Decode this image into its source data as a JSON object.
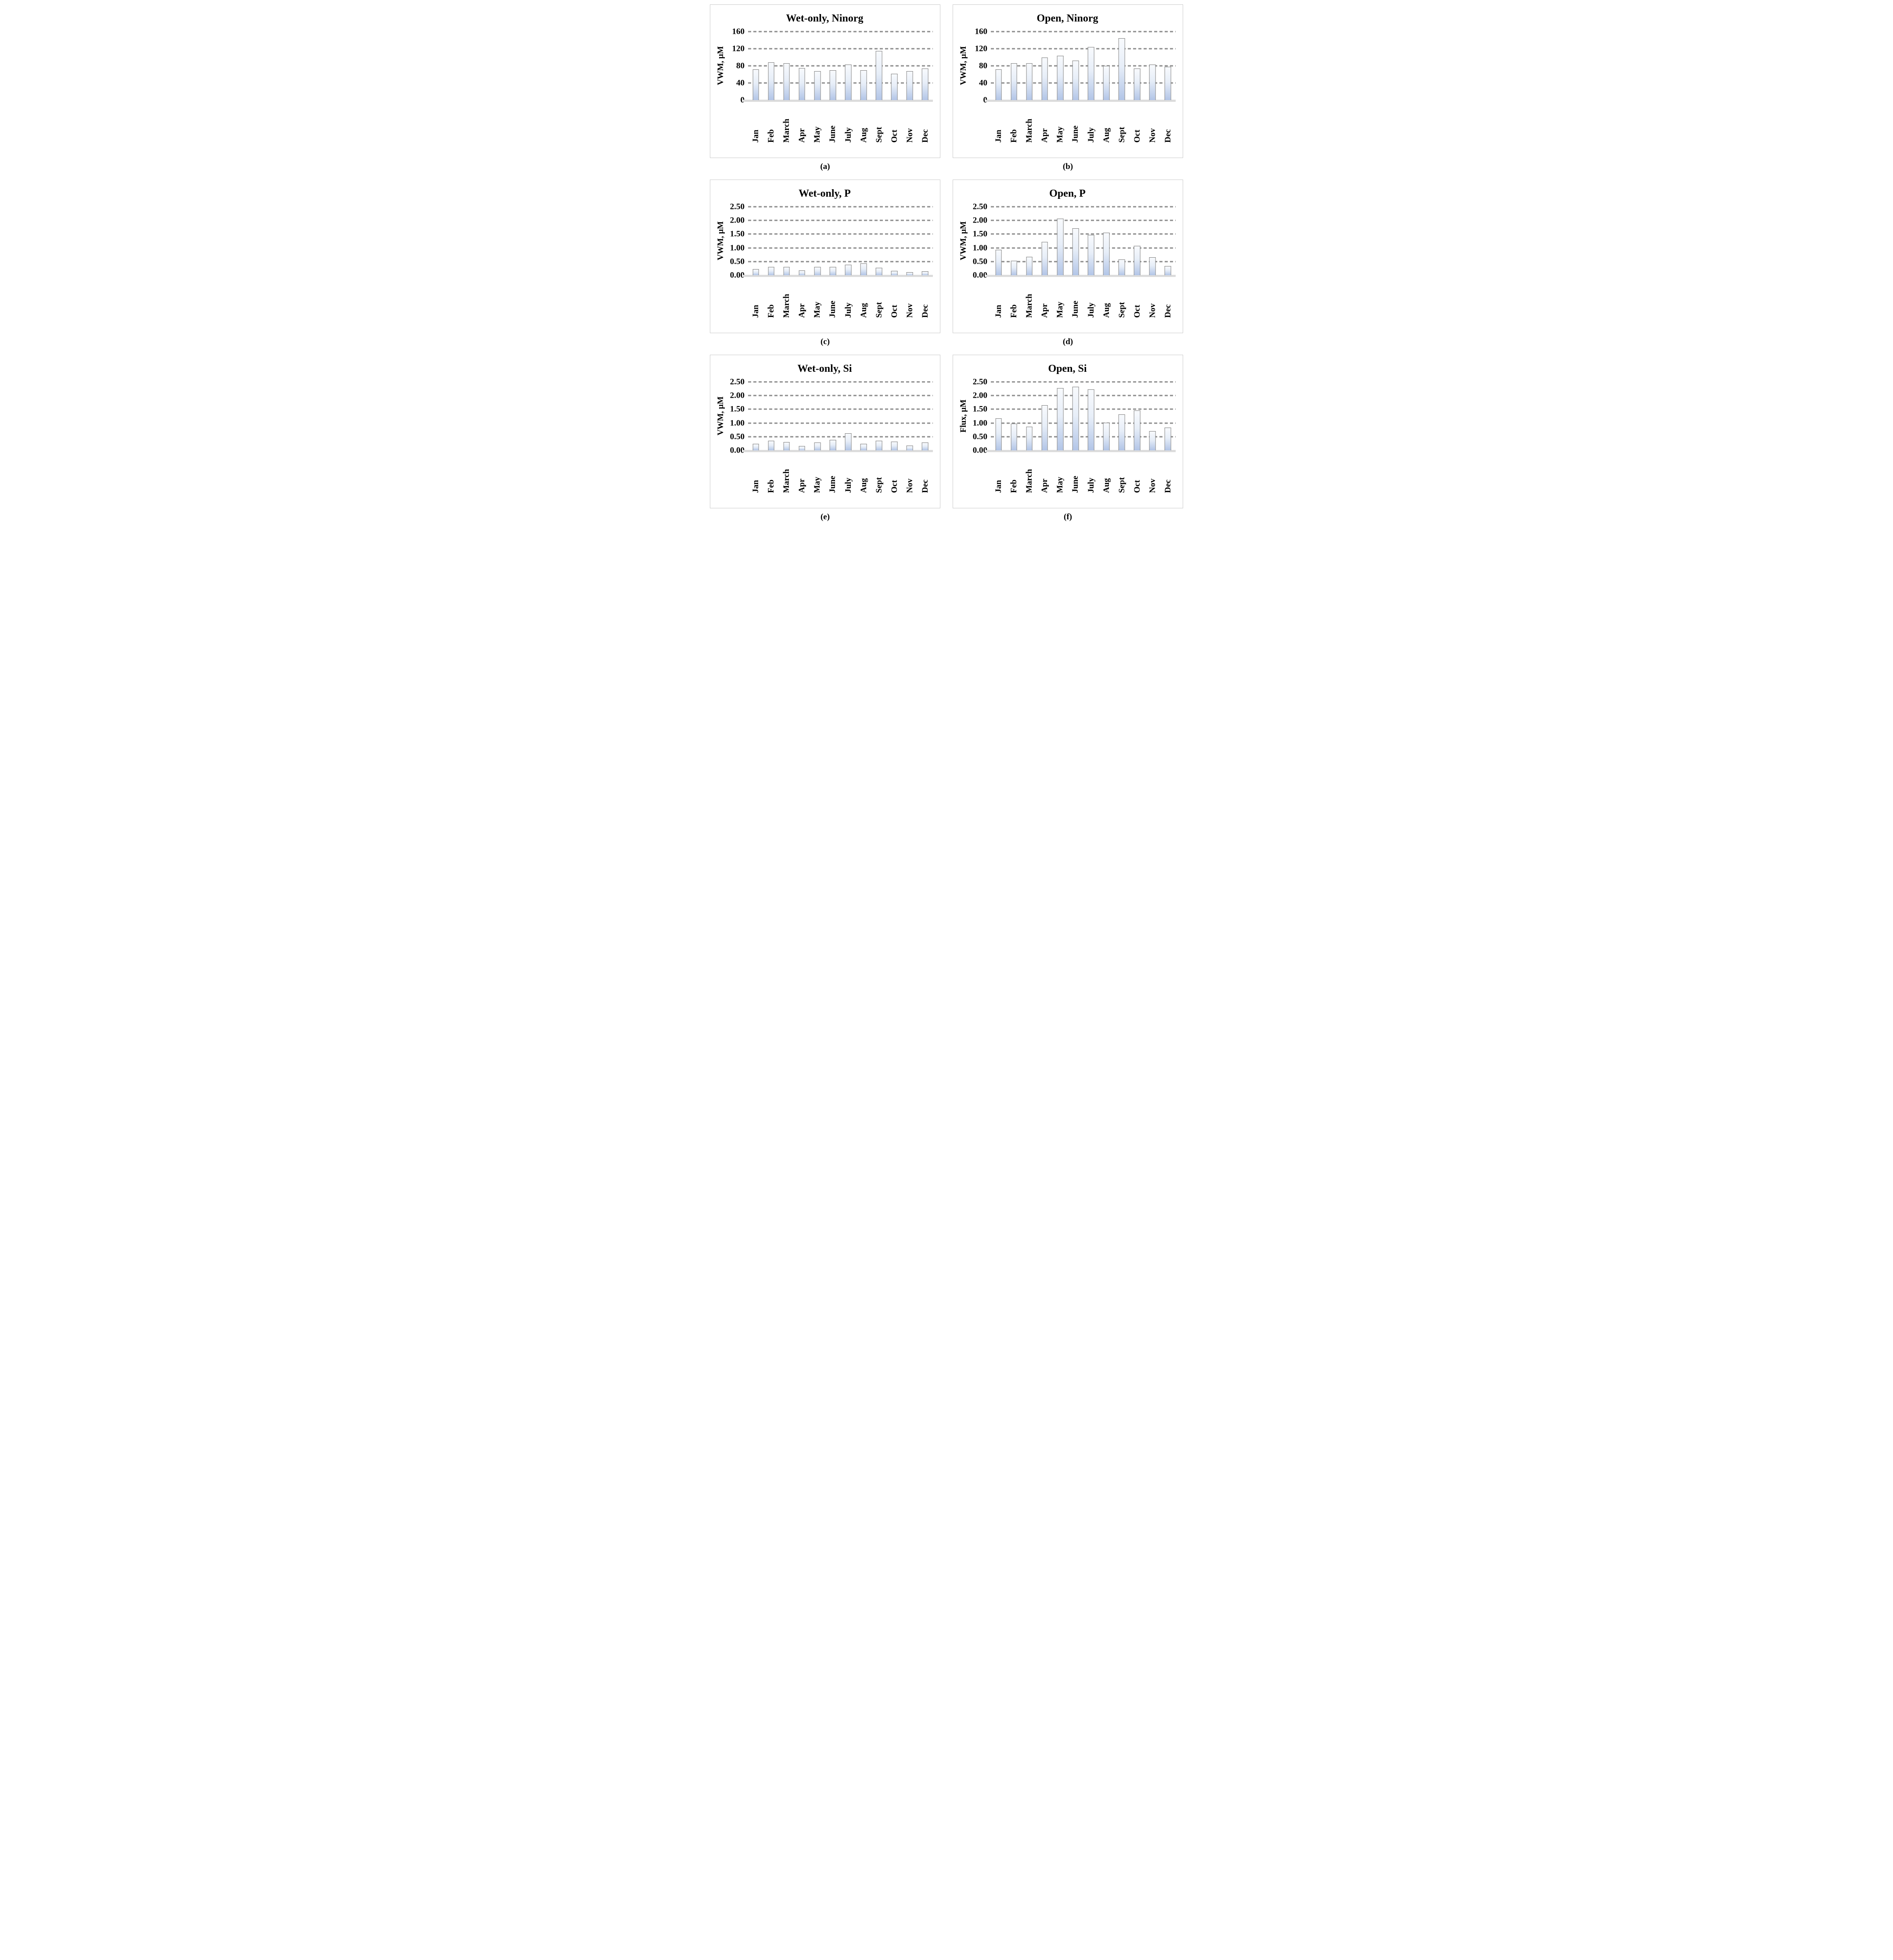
{
  "figure": {
    "layout": "2x3-grid-of-bar-charts",
    "months": [
      "Jan",
      "Feb",
      "March",
      "Apr",
      "May",
      "June",
      "July",
      "Aug",
      "Sept",
      "Oct",
      "Nov",
      "Dec"
    ]
  },
  "styles": {
    "gridline_color": "#8c8c8c",
    "baseline_color": "#dcdcdc",
    "panel_border_color": "#cccccc",
    "bar_gradient_top": "#f8fafd",
    "bar_gradient_mid": "#e7eef8",
    "bar_gradient_bottom": "#b2c5e7",
    "bar_border_color": "#7f7f7f",
    "text_color": "#000000"
  },
  "chart_data": [
    {
      "id": "a",
      "type": "bar",
      "title": "Wet-only, Ninorg",
      "ylabel": "VWM, µM",
      "caption": "(a)",
      "legend_position": "none",
      "grid": "horizontal-dashed",
      "categories": [
        "Jan",
        "Feb",
        "March",
        "Apr",
        "May",
        "June",
        "July",
        "Aug",
        "Sept",
        "Oct",
        "Nov",
        "Dec"
      ],
      "values": [
        72,
        88,
        86,
        75,
        68,
        70,
        83,
        70,
        115,
        62,
        68,
        74
      ],
      "ylim": [
        0,
        160
      ],
      "ytick_values": [
        160,
        120,
        80,
        40,
        0
      ],
      "ytick_labels": [
        "160",
        "120",
        "80",
        "40",
        "0"
      ]
    },
    {
      "id": "b",
      "type": "bar",
      "title": "Open, Ninorg",
      "ylabel": "VWM, µM",
      "caption": "(b)",
      "legend_position": "none",
      "grid": "horizontal-dashed",
      "categories": [
        "Jan",
        "Feb",
        "March",
        "Apr",
        "May",
        "June",
        "July",
        "Aug",
        "Sept",
        "Oct",
        "Nov",
        "Dec"
      ],
      "values": [
        72,
        86,
        86,
        100,
        104,
        92,
        124,
        80,
        145,
        74,
        83,
        78
      ],
      "ylim": [
        0,
        160
      ],
      "ytick_values": [
        160,
        120,
        80,
        40,
        0
      ],
      "ytick_labels": [
        "160",
        "120",
        "80",
        "40",
        "0"
      ]
    },
    {
      "id": "c",
      "type": "bar",
      "title": "Wet-only, P",
      "ylabel": "VWM, µM",
      "caption": "(c)",
      "legend_position": "none",
      "grid": "horizontal-dashed",
      "categories": [
        "Jan",
        "Feb",
        "March",
        "Apr",
        "May",
        "June",
        "July",
        "Aug",
        "Sept",
        "Oct",
        "Nov",
        "Dec"
      ],
      "values": [
        0.22,
        0.3,
        0.31,
        0.18,
        0.31,
        0.3,
        0.39,
        0.43,
        0.28,
        0.16,
        0.12,
        0.15
      ],
      "ylim": [
        0,
        2.5
      ],
      "ytick_values": [
        2.5,
        2.0,
        1.5,
        1.0,
        0.5,
        0
      ],
      "ytick_labels": [
        "2.50",
        "2.00",
        "1.50",
        "1.00",
        "0.50",
        "0.00"
      ]
    },
    {
      "id": "d",
      "type": "bar",
      "title": "Open, P",
      "ylabel": "VWM, µM",
      "caption": "(d)",
      "legend_position": "none",
      "grid": "horizontal-dashed",
      "categories": [
        "Jan",
        "Feb",
        "March",
        "Apr",
        "May",
        "June",
        "July",
        "Aug",
        "Sept",
        "Oct",
        "Nov",
        "Dec"
      ],
      "values": [
        0.93,
        0.53,
        0.68,
        1.22,
        2.07,
        1.72,
        1.48,
        1.56,
        0.58,
        1.08,
        0.65,
        0.33
      ],
      "ylim": [
        0,
        2.5
      ],
      "ytick_values": [
        2.5,
        2.0,
        1.5,
        1.0,
        0.5,
        0
      ],
      "ytick_labels": [
        "2.50",
        "2.00",
        "1.50",
        "1.00",
        "0.50",
        "0.00"
      ]
    },
    {
      "id": "e",
      "type": "bar",
      "title": "Wet-only, Si",
      "ylabel": "VWM, µM",
      "caption": "(e)",
      "legend_position": "none",
      "grid": "horizontal-dashed",
      "categories": [
        "Jan",
        "Feb",
        "March",
        "Apr",
        "May",
        "June",
        "July",
        "Aug",
        "Sept",
        "Oct",
        "Nov",
        "Dec"
      ],
      "values": [
        0.24,
        0.36,
        0.31,
        0.16,
        0.29,
        0.38,
        0.62,
        0.24,
        0.35,
        0.32,
        0.17,
        0.29
      ],
      "ylim": [
        0,
        2.5
      ],
      "ytick_values": [
        2.5,
        2.0,
        1.5,
        1.0,
        0.5,
        0
      ],
      "ytick_labels": [
        "2.50",
        "2.00",
        "1.50",
        "1.00",
        "0.50",
        "0.00"
      ]
    },
    {
      "id": "f",
      "type": "bar",
      "title": "Open, Si",
      "ylabel": "Flux, µM",
      "caption": "(f)",
      "legend_position": "none",
      "grid": "horizontal-dashed",
      "categories": [
        "Jan",
        "Feb",
        "March",
        "Apr",
        "May",
        "June",
        "July",
        "Aug",
        "Sept",
        "Oct",
        "Nov",
        "Dec"
      ],
      "values": [
        1.17,
        0.97,
        0.86,
        1.65,
        2.27,
        2.32,
        2.23,
        1.01,
        1.31,
        1.46,
        0.7,
        0.83
      ],
      "ylim": [
        0,
        2.5
      ],
      "ytick_values": [
        2.5,
        2.0,
        1.5,
        1.0,
        0.5,
        0
      ],
      "ytick_labels": [
        "2.50",
        "2.00",
        "1.50",
        "1.00",
        "0.50",
        "0.00"
      ]
    }
  ]
}
